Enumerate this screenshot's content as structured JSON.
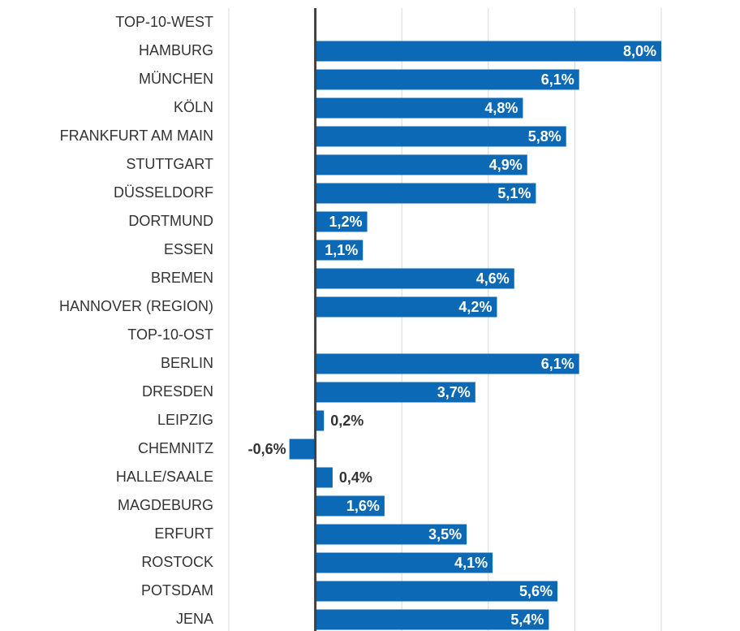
{
  "chart_data": {
    "type": "hbar",
    "categories": [
      "TOP-10-WEST",
      "HAMBURG",
      "MÜNCHEN",
      "KÖLN",
      "FRANKFURT AM MAIN",
      "STUTTGART",
      "DÜSSELDORF",
      "DORTMUND",
      "ESSEN",
      "BREMEN",
      "HANNOVER (REGION)",
      "TOP-10-OST",
      "BERLIN",
      "DRESDEN",
      "LEIPZIG",
      "CHEMNITZ",
      "HALLE/SAALE",
      "MAGDEBURG",
      "ERFURT",
      "ROSTOCK",
      "POTSDAM",
      "JENA"
    ],
    "values": [
      null,
      8.0,
      6.1,
      4.8,
      5.8,
      4.9,
      5.1,
      1.2,
      1.1,
      4.6,
      4.2,
      null,
      6.1,
      3.7,
      0.2,
      -0.6,
      0.4,
      1.6,
      3.5,
      4.1,
      5.6,
      5.4
    ],
    "value_labels": [
      null,
      "8,0%",
      "6,1%",
      "4,8%",
      "5,8%",
      "4,9%",
      "5,1%",
      "1,2%",
      "1,1%",
      "4,6%",
      "4,2%",
      null,
      "6,1%",
      "3,7%",
      "0,2%",
      "-0,6%",
      "0,4%",
      "1,6%",
      "3,5%",
      "4,1%",
      "5,6%",
      "5,4%"
    ],
    "color": "#0b69b5",
    "xlim": [
      -2,
      8
    ],
    "xticks": [
      -2,
      0,
      2,
      4,
      6,
      8
    ],
    "grid": true
  }
}
